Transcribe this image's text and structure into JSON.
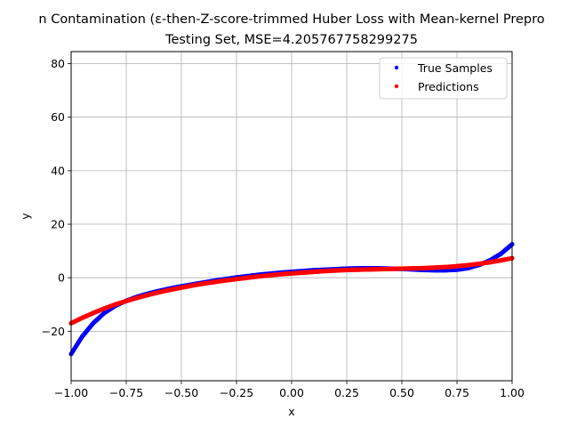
{
  "chart_data": {
    "type": "scatter",
    "title_line1": "n Contamination (ε-then-Z-score-trimmed Huber Loss with Mean-kernel Prepro",
    "title_line2": "Testing Set, MSE=4.205767758299275",
    "xlabel": "x",
    "ylabel": "y",
    "xlim": [
      -1.0,
      1.0
    ],
    "ylim": [
      -38.5,
      84.5
    ],
    "xticks": [
      -1.0,
      -0.75,
      -0.5,
      -0.25,
      0.0,
      0.25,
      0.5,
      0.75,
      1.0
    ],
    "xtick_labels": [
      "−1.00",
      "−0.75",
      "−0.50",
      "−0.25",
      "0.00",
      "0.25",
      "0.50",
      "0.75",
      "1.00"
    ],
    "yticks": [
      -20,
      0,
      20,
      40,
      60,
      80
    ],
    "ytick_labels": [
      "−20",
      "0",
      "20",
      "40",
      "60",
      "80"
    ],
    "grid": true,
    "legend_position": "top-right",
    "series": [
      {
        "name": "True Samples",
        "color": "#0000ff",
        "x": [
          -1.0,
          -0.95,
          -0.9,
          -0.85,
          -0.8,
          -0.75,
          -0.7,
          -0.65,
          -0.6,
          -0.55,
          -0.5,
          -0.45,
          -0.4,
          -0.35,
          -0.3,
          -0.25,
          -0.2,
          -0.15,
          -0.1,
          -0.05,
          0.0,
          0.05,
          0.1,
          0.15,
          0.2,
          0.25,
          0.3,
          0.35,
          0.4,
          0.45,
          0.5,
          0.55,
          0.6,
          0.65,
          0.7,
          0.75,
          0.8,
          0.85,
          0.9,
          0.95,
          1.0
        ],
        "y": [
          -28.5,
          -22.0,
          -17.0,
          -13.2,
          -10.5,
          -8.6,
          -7.1,
          -5.9,
          -4.9,
          -4.0,
          -3.2,
          -2.5,
          -1.8,
          -1.1,
          -0.5,
          0.1,
          0.6,
          1.1,
          1.5,
          1.9,
          2.2,
          2.5,
          2.8,
          3.0,
          3.2,
          3.4,
          3.5,
          3.5,
          3.5,
          3.4,
          3.3,
          3.1,
          2.9,
          2.8,
          2.8,
          3.0,
          3.6,
          4.8,
          6.5,
          9.0,
          12.5
        ]
      },
      {
        "name": "Predictions",
        "color": "#ff0000",
        "x": [
          -1.0,
          -0.95,
          -0.9,
          -0.85,
          -0.8,
          -0.75,
          -0.7,
          -0.65,
          -0.6,
          -0.55,
          -0.5,
          -0.45,
          -0.4,
          -0.35,
          -0.3,
          -0.25,
          -0.2,
          -0.15,
          -0.1,
          -0.05,
          0.0,
          0.05,
          0.1,
          0.15,
          0.2,
          0.25,
          0.3,
          0.35,
          0.4,
          0.45,
          0.5,
          0.55,
          0.6,
          0.65,
          0.7,
          0.75,
          0.8,
          0.85,
          0.9,
          0.95,
          1.0
        ],
        "y": [
          -17.0,
          -15.0,
          -13.2,
          -11.5,
          -10.0,
          -8.7,
          -7.5,
          -6.4,
          -5.4,
          -4.5,
          -3.7,
          -2.9,
          -2.2,
          -1.6,
          -1.0,
          -0.5,
          0.0,
          0.5,
          0.9,
          1.3,
          1.6,
          1.9,
          2.2,
          2.5,
          2.7,
          2.9,
          3.0,
          3.1,
          3.2,
          3.3,
          3.4,
          3.5,
          3.6,
          3.8,
          4.0,
          4.3,
          4.7,
          5.2,
          5.8,
          6.5,
          7.3
        ]
      }
    ]
  }
}
